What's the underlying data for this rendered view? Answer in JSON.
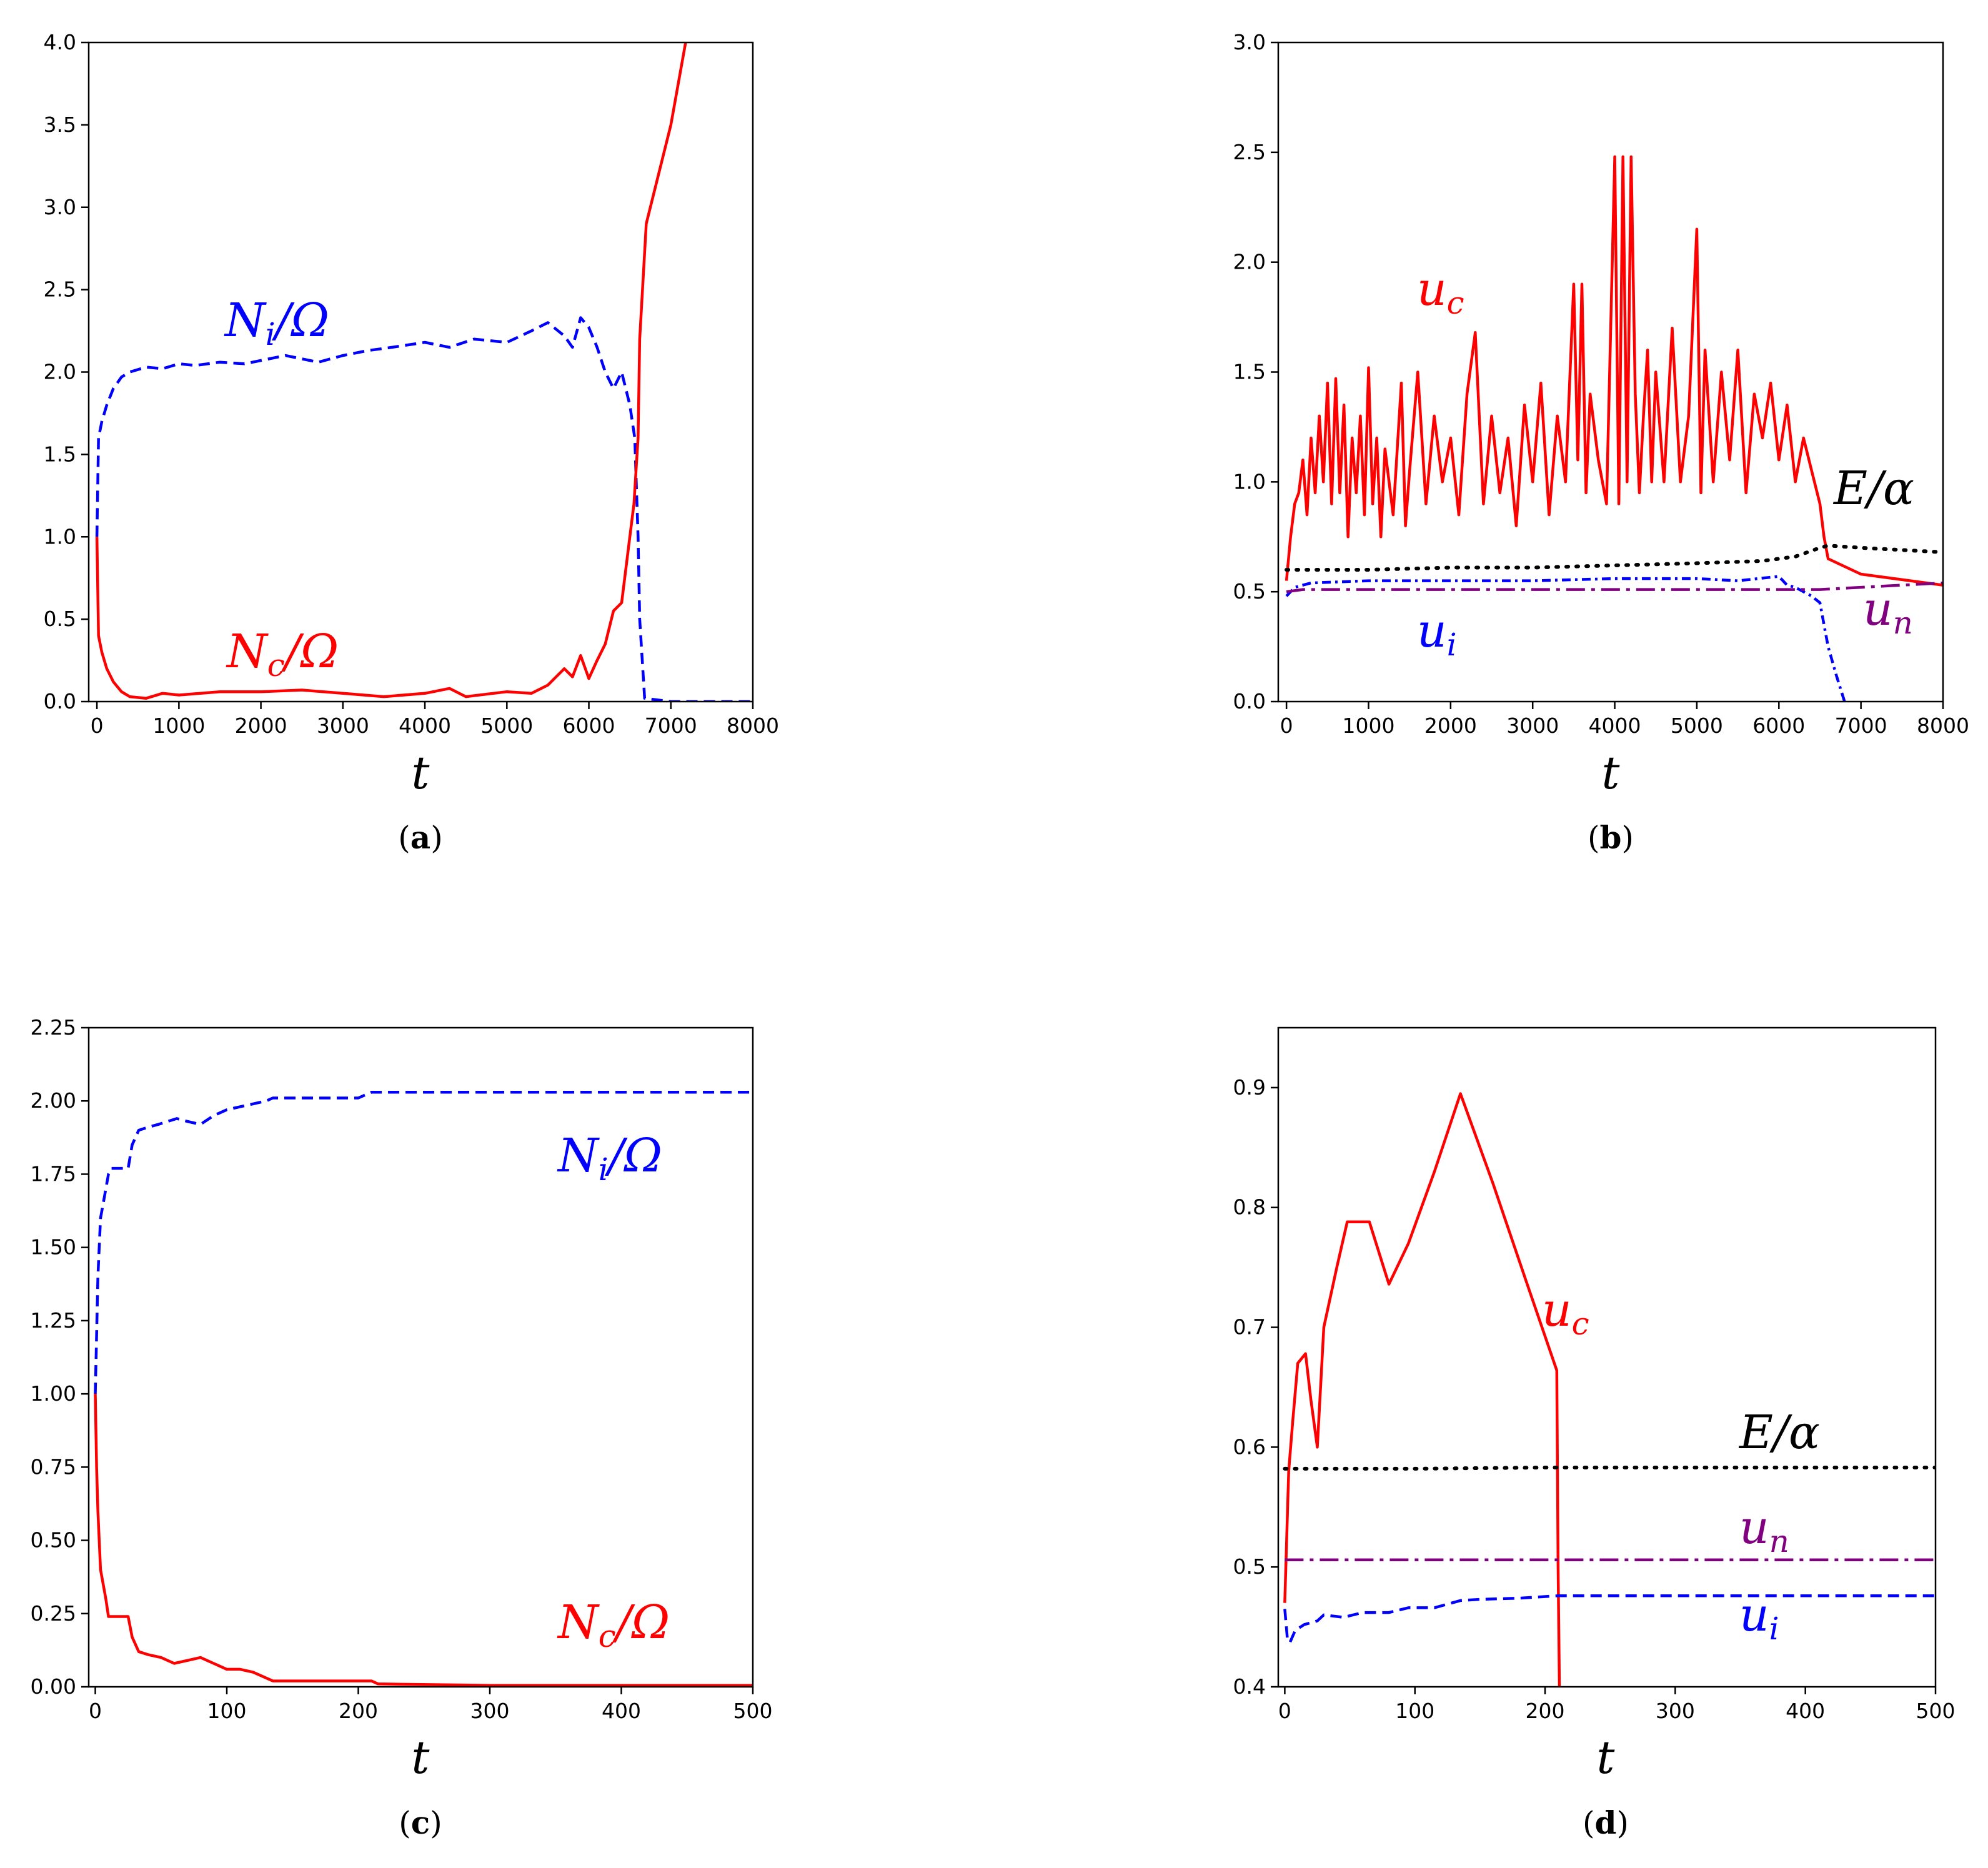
{
  "colors": {
    "Ni": "#0000ff",
    "Nc": "#ff0000",
    "uc": "#ff0000",
    "ui": "#0000ff",
    "un": "#800080",
    "E": "#000000"
  },
  "chart_data": [
    {
      "panel": "(a)",
      "type": "line",
      "xlabel": "t",
      "ylabel": "",
      "xlim": [
        -100,
        8000
      ],
      "ylim": [
        0,
        4.0
      ],
      "xticks": [
        0,
        1000,
        2000,
        3000,
        4000,
        5000,
        6000,
        7000,
        8000
      ],
      "xtick_labels": [
        "0",
        "1000",
        "2000",
        "3000",
        "4000",
        "5000",
        "6000",
        "7000",
        "8000"
      ],
      "yticks": [
        0.0,
        0.5,
        1.0,
        1.5,
        2.0,
        2.5,
        3.0,
        3.5,
        4.0
      ],
      "ytick_labels": [
        "0.0",
        "0.5",
        "1.0",
        "1.5",
        "2.0",
        "2.5",
        "3.0",
        "3.5",
        "4.0"
      ],
      "series": [
        {
          "name": "N_i/Ω",
          "color_key": "Ni",
          "style": "dashed",
          "annotation": "Ni/Ω",
          "x": [
            0,
            20,
            60,
            120,
            200,
            300,
            400,
            600,
            800,
            1000,
            1200,
            1500,
            1800,
            2000,
            2300,
            2500,
            2700,
            3000,
            3300,
            3600,
            4000,
            4300,
            4600,
            5000,
            5300,
            5500,
            5700,
            5800,
            5900,
            6000,
            6100,
            6200,
            6300,
            6400,
            6500,
            6560,
            6600,
            6620,
            6680,
            7000,
            8000
          ],
          "y": [
            1.0,
            1.6,
            1.7,
            1.8,
            1.9,
            1.97,
            2.0,
            2.03,
            2.02,
            2.05,
            2.04,
            2.06,
            2.05,
            2.07,
            2.1,
            2.08,
            2.06,
            2.1,
            2.13,
            2.15,
            2.18,
            2.15,
            2.2,
            2.18,
            2.25,
            2.3,
            2.22,
            2.15,
            2.33,
            2.27,
            2.15,
            2.0,
            1.9,
            2.0,
            1.8,
            1.6,
            1.0,
            0.5,
            0.02,
            0.0,
            0.0
          ]
        },
        {
          "name": "N_c/Ω",
          "color_key": "Nc",
          "style": "solid",
          "annotation": "Nc/Ω",
          "x": [
            0,
            20,
            60,
            120,
            200,
            300,
            400,
            600,
            800,
            1000,
            1500,
            2000,
            2500,
            3000,
            3500,
            4000,
            4300,
            4500,
            5000,
            5300,
            5500,
            5700,
            5800,
            5900,
            6000,
            6100,
            6200,
            6300,
            6400,
            6500,
            6550,
            6600,
            6620,
            6700,
            7000,
            7180
          ],
          "y": [
            1.0,
            0.4,
            0.3,
            0.2,
            0.12,
            0.06,
            0.03,
            0.02,
            0.05,
            0.04,
            0.06,
            0.06,
            0.07,
            0.05,
            0.03,
            0.05,
            0.08,
            0.03,
            0.06,
            0.05,
            0.1,
            0.2,
            0.15,
            0.28,
            0.14,
            0.25,
            0.35,
            0.55,
            0.6,
            1.0,
            1.2,
            1.6,
            2.2,
            2.9,
            3.5,
            4.0
          ]
        }
      ]
    },
    {
      "panel": "(b)",
      "type": "line",
      "xlabel": "t",
      "ylabel": "",
      "xlim": [
        -100,
        8000
      ],
      "ylim": [
        0,
        3.0
      ],
      "xticks": [
        0,
        1000,
        2000,
        3000,
        4000,
        5000,
        6000,
        7000,
        8000
      ],
      "xtick_labels": [
        "0",
        "1000",
        "2000",
        "3000",
        "4000",
        "5000",
        "6000",
        "7000",
        "8000"
      ],
      "yticks": [
        0.0,
        0.5,
        1.0,
        1.5,
        2.0,
        2.5,
        3.0
      ],
      "ytick_labels": [
        "0.0",
        "0.5",
        "1.0",
        "1.5",
        "2.0",
        "2.5",
        "3.0"
      ],
      "series": [
        {
          "name": "u_c",
          "color_key": "uc",
          "style": "solid",
          "x": [
            0,
            50,
            100,
            150,
            200,
            250,
            300,
            350,
            400,
            450,
            500,
            550,
            600,
            650,
            700,
            750,
            800,
            850,
            900,
            950,
            1000,
            1050,
            1100,
            1150,
            1200,
            1300,
            1400,
            1450,
            1500,
            1600,
            1700,
            1800,
            1900,
            2000,
            2100,
            2200,
            2300,
            2400,
            2500,
            2600,
            2700,
            2800,
            2900,
            3000,
            3100,
            3200,
            3300,
            3400,
            3500,
            3550,
            3600,
            3650,
            3700,
            3800,
            3900,
            4000,
            4050,
            4100,
            4150,
            4200,
            4250,
            4300,
            4350,
            4400,
            4450,
            4500,
            4600,
            4700,
            4800,
            4900,
            5000,
            5050,
            5100,
            5200,
            5300,
            5400,
            5500,
            5600,
            5700,
            5800,
            5900,
            6000,
            6100,
            6200,
            6300,
            6400,
            6500,
            6550,
            6600,
            7000,
            8000
          ],
          "y": [
            0.55,
            0.75,
            0.9,
            0.95,
            1.1,
            0.85,
            1.2,
            0.95,
            1.3,
            1.0,
            1.45,
            0.9,
            1.47,
            0.95,
            1.35,
            0.75,
            1.2,
            0.95,
            1.3,
            0.85,
            1.52,
            0.9,
            1.2,
            0.75,
            1.15,
            0.85,
            1.45,
            0.8,
            1.05,
            1.5,
            0.9,
            1.3,
            1.0,
            1.2,
            0.85,
            1.4,
            1.68,
            0.9,
            1.3,
            0.95,
            1.2,
            0.8,
            1.35,
            1.0,
            1.45,
            0.85,
            1.3,
            1.0,
            1.9,
            1.1,
            1.9,
            0.95,
            1.4,
            1.1,
            0.9,
            2.48,
            0.9,
            2.48,
            1.0,
            2.48,
            1.4,
            0.95,
            1.3,
            1.6,
            1.0,
            1.5,
            1.0,
            1.7,
            1.0,
            1.3,
            2.15,
            0.95,
            1.6,
            1.0,
            1.5,
            1.1,
            1.6,
            0.95,
            1.4,
            1.2,
            1.45,
            1.1,
            1.35,
            1.0,
            1.2,
            1.05,
            0.9,
            0.75,
            0.65,
            0.58,
            0.53
          ]
        },
        {
          "name": "E/α",
          "color_key": "E",
          "style": "dotted",
          "x": [
            0,
            1000,
            2000,
            3000,
            4000,
            5000,
            5800,
            6200,
            6500,
            6600,
            7000,
            8000
          ],
          "y": [
            0.6,
            0.6,
            0.61,
            0.61,
            0.62,
            0.63,
            0.64,
            0.66,
            0.7,
            0.71,
            0.7,
            0.68
          ]
        },
        {
          "name": "u_i",
          "color_key": "ui",
          "style": "dashdot-fine",
          "x": [
            0,
            100,
            300,
            1000,
            2000,
            3000,
            4000,
            5000,
            5500,
            6000,
            6100,
            6200,
            6300,
            6400,
            6500,
            6550,
            6600,
            6700,
            6800
          ],
          "y": [
            0.48,
            0.52,
            0.54,
            0.55,
            0.55,
            0.55,
            0.56,
            0.56,
            0.55,
            0.57,
            0.53,
            0.52,
            0.5,
            0.48,
            0.45,
            0.35,
            0.25,
            0.12,
            0.0
          ]
        },
        {
          "name": "u_n",
          "color_key": "un",
          "style": "dashdot",
          "x": [
            0,
            200,
            1000,
            2000,
            3000,
            4000,
            5000,
            6000,
            6500,
            7000,
            7500,
            8000
          ],
          "y": [
            0.5,
            0.51,
            0.51,
            0.51,
            0.51,
            0.51,
            0.51,
            0.51,
            0.51,
            0.52,
            0.53,
            0.54
          ]
        }
      ]
    },
    {
      "panel": "(c)",
      "type": "line",
      "xlabel": "t",
      "ylabel": "",
      "xlim": [
        -5,
        500
      ],
      "ylim": [
        0,
        2.25
      ],
      "xticks": [
        0,
        100,
        200,
        300,
        400,
        500
      ],
      "xtick_labels": [
        "0",
        "100",
        "200",
        "300",
        "400",
        "500"
      ],
      "yticks": [
        0.0,
        0.25,
        0.5,
        0.75,
        1.0,
        1.25,
        1.5,
        1.75,
        2.0,
        2.25
      ],
      "ytick_labels": [
        "0.00",
        "0.25",
        "0.50",
        "0.75",
        "1.00",
        "1.25",
        "1.50",
        "1.75",
        "2.00",
        "2.25"
      ],
      "series": [
        {
          "name": "N_i/Ω",
          "color_key": "Ni",
          "style": "dashed",
          "x": [
            0,
            1,
            2,
            3,
            4,
            6,
            8,
            10,
            12,
            16,
            20,
            25,
            28,
            33,
            40,
            48,
            55,
            62,
            70,
            80,
            90,
            100,
            110,
            120,
            130,
            135,
            150,
            170,
            200,
            210,
            220,
            260,
            300,
            500
          ],
          "y": [
            1.0,
            1.2,
            1.4,
            1.5,
            1.6,
            1.65,
            1.7,
            1.75,
            1.77,
            1.77,
            1.77,
            1.77,
            1.85,
            1.9,
            1.91,
            1.92,
            1.93,
            1.94,
            1.93,
            1.92,
            1.95,
            1.97,
            1.98,
            1.99,
            2.0,
            2.01,
            2.01,
            2.01,
            2.01,
            2.03,
            2.03,
            2.03,
            2.03,
            2.03
          ]
        },
        {
          "name": "N_c/Ω",
          "color_key": "Nc",
          "style": "solid",
          "x": [
            0,
            1,
            2,
            3,
            4,
            6,
            8,
            10,
            12,
            20,
            25,
            28,
            33,
            40,
            50,
            60,
            70,
            80,
            90,
            100,
            110,
            120,
            130,
            135,
            150,
            180,
            210,
            215,
            300,
            500
          ],
          "y": [
            1.0,
            0.75,
            0.6,
            0.5,
            0.4,
            0.35,
            0.3,
            0.24,
            0.24,
            0.24,
            0.24,
            0.17,
            0.12,
            0.11,
            0.1,
            0.08,
            0.09,
            0.1,
            0.08,
            0.06,
            0.06,
            0.05,
            0.03,
            0.02,
            0.02,
            0.02,
            0.02,
            0.01,
            0.005,
            0.005
          ]
        }
      ]
    },
    {
      "panel": "(d)",
      "type": "line",
      "xlabel": "t",
      "ylabel": "",
      "xlim": [
        -5,
        500
      ],
      "ylim": [
        0.4,
        0.95
      ],
      "xticks": [
        0,
        100,
        200,
        300,
        400,
        500
      ],
      "xtick_labels": [
        "0",
        "100",
        "200",
        "300",
        "400",
        "500"
      ],
      "yticks": [
        0.4,
        0.5,
        0.6,
        0.7,
        0.8,
        0.9
      ],
      "ytick_labels": [
        "0.4",
        "0.5",
        "0.6",
        "0.7",
        "0.8",
        "0.9"
      ],
      "series": [
        {
          "name": "u_c",
          "color_key": "uc",
          "style": "solid",
          "x": [
            0,
            3,
            6,
            10,
            16,
            20,
            25,
            30,
            40,
            48,
            56,
            65,
            80,
            95,
            115,
            135,
            160,
            185,
            209,
            210,
            211
          ],
          "y": [
            0.47,
            0.58,
            0.62,
            0.67,
            0.678,
            0.64,
            0.6,
            0.7,
            0.75,
            0.788,
            0.788,
            0.788,
            0.736,
            0.77,
            0.83,
            0.895,
            0.82,
            0.74,
            0.664,
            0.5,
            0.4
          ]
        },
        {
          "name": "E/α",
          "color_key": "E",
          "style": "dotted",
          "x": [
            0,
            100,
            200,
            300,
            400,
            500
          ],
          "y": [
            0.582,
            0.582,
            0.583,
            0.583,
            0.583,
            0.583
          ]
        },
        {
          "name": "u_n",
          "color_key": "un",
          "style": "dashdot",
          "x": [
            0,
            100,
            200,
            300,
            400,
            500
          ],
          "y": [
            0.506,
            0.506,
            0.506,
            0.506,
            0.506,
            0.506
          ]
        },
        {
          "name": "u_i",
          "color_key": "ui",
          "style": "dashed",
          "x": [
            0,
            2,
            4,
            8,
            15,
            25,
            30,
            45,
            60,
            80,
            95,
            115,
            135,
            150,
            180,
            210,
            250,
            300,
            400,
            500
          ],
          "y": [
            0.465,
            0.44,
            0.437,
            0.447,
            0.452,
            0.455,
            0.46,
            0.458,
            0.462,
            0.462,
            0.466,
            0.466,
            0.472,
            0.473,
            0.474,
            0.476,
            0.476,
            0.476,
            0.476,
            0.476
          ]
        }
      ]
    }
  ]
}
